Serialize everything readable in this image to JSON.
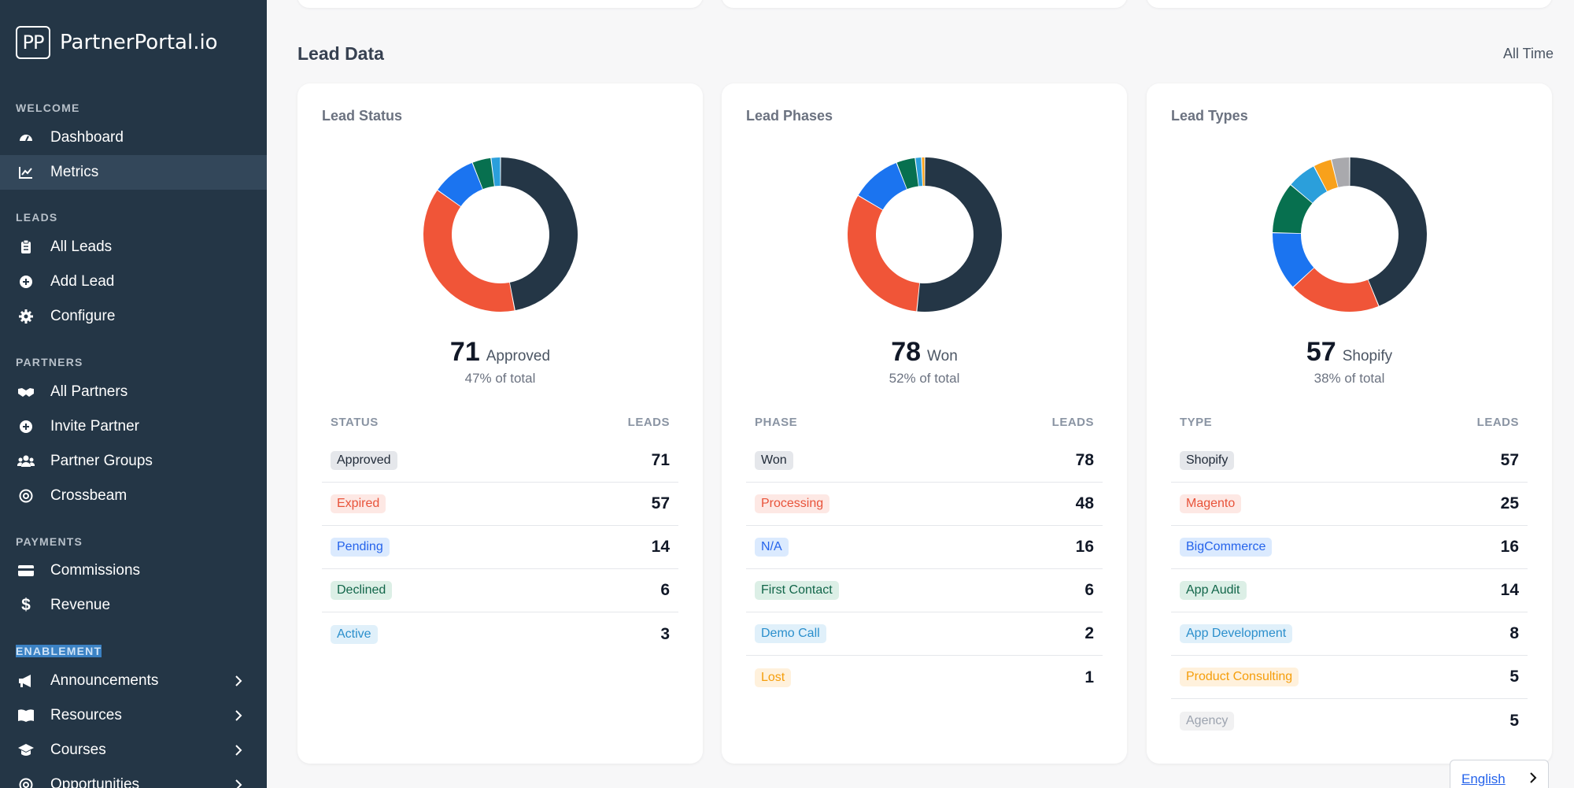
{
  "brand": {
    "logo": "PP",
    "name": "PartnerPortal.io"
  },
  "sidebar": {
    "sections": [
      {
        "title": "WELCOME"
      },
      {
        "title": "LEADS"
      },
      {
        "title": "PARTNERS"
      },
      {
        "title": "PAYMENTS"
      },
      {
        "title": "ENABLEMENT"
      }
    ],
    "items": [
      {
        "label": "Dashboard",
        "icon": "gauge-icon"
      },
      {
        "label": "Metrics",
        "icon": "chart-line-icon",
        "active": true
      },
      {
        "label": "All Leads",
        "icon": "clipboard-icon"
      },
      {
        "label": "Add Lead",
        "icon": "plus-circle-icon"
      },
      {
        "label": "Configure",
        "icon": "gear-icon"
      },
      {
        "label": "All Partners",
        "icon": "handshake-icon"
      },
      {
        "label": "Invite Partner",
        "icon": "plus-circle-icon"
      },
      {
        "label": "Partner Groups",
        "icon": "users-icon"
      },
      {
        "label": "Crossbeam",
        "icon": "target-icon"
      },
      {
        "label": "Commissions",
        "icon": "credit-card-icon"
      },
      {
        "label": "Revenue",
        "icon": "dollar-icon"
      },
      {
        "label": "Announcements",
        "icon": "megaphone-icon"
      },
      {
        "label": "Resources",
        "icon": "book-icon"
      },
      {
        "label": "Courses",
        "icon": "graduation-cap-icon"
      },
      {
        "label": "Opportunities",
        "icon": "target-icon"
      }
    ]
  },
  "main": {
    "section_title": "Lead Data",
    "period": "All Time"
  },
  "cards": [
    {
      "title": "Lead Status",
      "summary": {
        "count": "71",
        "label": "Approved",
        "pct": "47% of total"
      },
      "col_left": "STATUS",
      "col_right": "LEADS",
      "rows": [
        {
          "label": "Approved",
          "value": "71",
          "bg": "#e5e7eb",
          "fg": "#1f2937"
        },
        {
          "label": "Expired",
          "value": "57",
          "bg": "#fde8e4",
          "fg": "#e8533a"
        },
        {
          "label": "Pending",
          "value": "14",
          "bg": "#dbeafe",
          "fg": "#2563eb"
        },
        {
          "label": "Declined",
          "value": "6",
          "bg": "#dcefe6",
          "fg": "#12664a"
        },
        {
          "label": "Active",
          "value": "3",
          "bg": "#e0f0fa",
          "fg": "#2b8fcc"
        }
      ]
    },
    {
      "title": "Lead Phases",
      "summary": {
        "count": "78",
        "label": "Won",
        "pct": "52% of total"
      },
      "col_left": "PHASE",
      "col_right": "LEADS",
      "rows": [
        {
          "label": "Won",
          "value": "78",
          "bg": "#e5e7eb",
          "fg": "#1f2937"
        },
        {
          "label": "Processing",
          "value": "48",
          "bg": "#fde8e4",
          "fg": "#e8533a"
        },
        {
          "label": "N/A",
          "value": "16",
          "bg": "#dbeafe",
          "fg": "#2563eb"
        },
        {
          "label": "First Contact",
          "value": "6",
          "bg": "#dcefe6",
          "fg": "#12664a"
        },
        {
          "label": "Demo Call",
          "value": "2",
          "bg": "#e0f0fa",
          "fg": "#2b8fcc"
        },
        {
          "label": "Lost",
          "value": "1",
          "bg": "#fff1dc",
          "fg": "#f59e0b"
        }
      ]
    },
    {
      "title": "Lead Types",
      "summary": {
        "count": "57",
        "label": "Shopify",
        "pct": "38% of total"
      },
      "col_left": "TYPE",
      "col_right": "LEADS",
      "rows": [
        {
          "label": "Shopify",
          "value": "57",
          "bg": "#e5e7eb",
          "fg": "#1f2937"
        },
        {
          "label": "Magento",
          "value": "25",
          "bg": "#fde8e4",
          "fg": "#e8533a"
        },
        {
          "label": "BigCommerce",
          "value": "16",
          "bg": "#dbeafe",
          "fg": "#2563eb"
        },
        {
          "label": "App Audit",
          "value": "14",
          "bg": "#dcefe6",
          "fg": "#12664a"
        },
        {
          "label": "App Development",
          "value": "8",
          "bg": "#e0f0fa",
          "fg": "#2b8fcc"
        },
        {
          "label": "Product Consulting",
          "value": "5",
          "bg": "#fff1dc",
          "fg": "#f59e0b"
        },
        {
          "label": "Agency",
          "value": "5",
          "bg": "#f1f1f2",
          "fg": "#9ca3af"
        }
      ]
    }
  ],
  "donut_colors": [
    "#243646",
    "#f05538",
    "#1b74f0",
    "#07704f",
    "#2b9fdb",
    "#f8a11b",
    "#a9a9ad"
  ],
  "language": {
    "label": "English"
  },
  "chart_data": [
    {
      "type": "pie",
      "title": "Lead Status",
      "categories": [
        "Approved",
        "Expired",
        "Pending",
        "Declined",
        "Active"
      ],
      "values": [
        71,
        57,
        14,
        6,
        3
      ]
    },
    {
      "type": "pie",
      "title": "Lead Phases",
      "categories": [
        "Won",
        "Processing",
        "N/A",
        "First Contact",
        "Demo Call",
        "Lost"
      ],
      "values": [
        78,
        48,
        16,
        6,
        2,
        1
      ]
    },
    {
      "type": "pie",
      "title": "Lead Types",
      "categories": [
        "Shopify",
        "Magento",
        "BigCommerce",
        "App Audit",
        "App Development",
        "Product Consulting",
        "Agency"
      ],
      "values": [
        57,
        25,
        16,
        14,
        8,
        5,
        5
      ]
    }
  ]
}
